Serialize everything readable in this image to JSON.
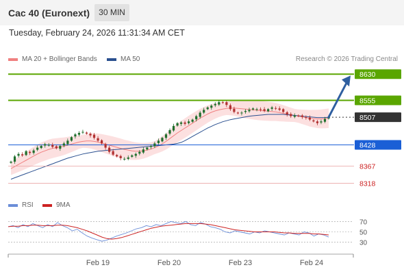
{
  "header": {
    "title": "Cac 40 (Euronext)",
    "timeframe": "30 MIN",
    "datetime": "Tuesday, February 24, 2026 11:31:34 AM CET"
  },
  "legend": {
    "ma20_label": "MA 20 + Bollinger Bands",
    "ma50_label": "MA 50",
    "copyright": "Research © 2026 Trading Central"
  },
  "colors": {
    "resistance": "#5aa600",
    "support": "#1a5fd6",
    "current": "#333333",
    "target_red": "#cc2222",
    "ma20": "#f08080",
    "ma50": "#2a4f8f",
    "bollinger_fill": "#fbd6d6",
    "candle_up": "#1f6e2c",
    "candle_down": "#b03030",
    "arrow": "#2f5fa0",
    "rsi": "#6b8ed8",
    "rsi_ma": "#cc2222"
  },
  "chart_data": [
    {
      "type": "candlestick",
      "title": "Cac 40 (Euronext)",
      "ylim": [
        8290,
        8650
      ],
      "x_tick_labels": [
        "Feb 19",
        "Feb 20",
        "Feb 23",
        "Feb 24"
      ],
      "levels": [
        {
          "value": 8630,
          "label": "8630",
          "kind": "resistance"
        },
        {
          "value": 8555,
          "label": "8555",
          "kind": "resistance"
        },
        {
          "value": 8507,
          "label": "8507",
          "kind": "current"
        },
        {
          "value": 8428,
          "label": "8428",
          "kind": "support"
        },
        {
          "value": 8367,
          "label": "8367",
          "kind": "target"
        },
        {
          "value": 8318,
          "label": "8318",
          "kind": "target"
        }
      ],
      "series": [
        {
          "name": "Close",
          "values": [
            8380,
            8395,
            8402,
            8398,
            8410,
            8405,
            8412,
            8420,
            8425,
            8430,
            8428,
            8422,
            8418,
            8425,
            8432,
            8440,
            8450,
            8458,
            8462,
            8465,
            8460,
            8455,
            8448,
            8440,
            8432,
            8420,
            8408,
            8400,
            8395,
            8390,
            8388,
            8392,
            8398,
            8402,
            8408,
            8415,
            8420,
            8425,
            8432,
            8440,
            8448,
            8458,
            8470,
            8482,
            8490,
            8492,
            8488,
            8495,
            8500,
            8510,
            8520,
            8528,
            8535,
            8540,
            8545,
            8550,
            8548,
            8542,
            8530,
            8522,
            8518,
            8520,
            8525,
            8528,
            8532,
            8530,
            8528,
            8525,
            8530,
            8535,
            8532,
            8528,
            8522,
            8515,
            8510,
            8512,
            8510,
            8508,
            8505,
            8500,
            8495,
            8490,
            8495,
            8502,
            8507
          ]
        },
        {
          "name": "MA 20",
          "values": [
            8360,
            8366,
            8372,
            8378,
            8384,
            8390,
            8396,
            8402,
            8407,
            8411,
            8415,
            8418,
            8420,
            8422,
            8424,
            8427,
            8430,
            8433,
            8436,
            8438,
            8439,
            8439,
            8438,
            8436,
            8433,
            8430,
            8427,
            8424,
            8421,
            8418,
            8415,
            8413,
            8411,
            8410,
            8410,
            8411,
            8413,
            8416,
            8420,
            8425,
            8431,
            8438,
            8446,
            8454,
            8462,
            8469,
            8476,
            8483,
            8490,
            8497,
            8504,
            8510,
            8516,
            8521,
            8525,
            8528,
            8530,
            8532,
            8533,
            8533,
            8532,
            8531,
            8530,
            8529,
            8528,
            8527,
            8526,
            8525,
            8524,
            8523,
            8522,
            8520,
            8518,
            8516,
            8514,
            8512,
            8510,
            8508,
            8506,
            8504,
            8503,
            8502,
            8502,
            8503,
            8504
          ]
        },
        {
          "name": "MA 50",
          "values": [
            8330,
            8334,
            8338,
            8342,
            8346,
            8350,
            8354,
            8358,
            8362,
            8366,
            8370,
            8374,
            8378,
            8382,
            8386,
            8390,
            8393,
            8396,
            8399,
            8402,
            8404,
            8406,
            8408,
            8410,
            8411,
            8412,
            8413,
            8414,
            8415,
            8416,
            8417,
            8418,
            8419,
            8420,
            8421,
            8422,
            8423,
            8424,
            8425,
            8426,
            8427,
            8428,
            8429,
            8430,
            8432,
            8435,
            8440,
            8446,
            8452,
            8458,
            8464,
            8470,
            8476,
            8481,
            8486,
            8490,
            8494,
            8497,
            8500,
            8502,
            8504,
            8506,
            8508,
            8510,
            8511,
            8512,
            8513,
            8514,
            8515,
            8515,
            8515,
            8515,
            8515,
            8514,
            8513,
            8512,
            8511,
            8510,
            8509,
            8508,
            8507,
            8506,
            8506,
            8506,
            8507
          ]
        }
      ]
    },
    {
      "type": "line",
      "title": "RSI",
      "ylim": [
        15,
        85
      ],
      "y_tick_labels": [
        "70",
        "50",
        "30"
      ],
      "series": [
        {
          "name": "RSI",
          "values": [
            60,
            62,
            58,
            64,
            60,
            66,
            62,
            58,
            64,
            60,
            68,
            62,
            58,
            52,
            55,
            48,
            42,
            38,
            35,
            32,
            34,
            38,
            42,
            45,
            48,
            52,
            56,
            58,
            62,
            60,
            64,
            62,
            66,
            70,
            68,
            66,
            70,
            64,
            62,
            68,
            65,
            60,
            58,
            55,
            50,
            48,
            52,
            50,
            48,
            46,
            50,
            48,
            52,
            50,
            48,
            46,
            44,
            48,
            46,
            44,
            50,
            48,
            42,
            46,
            44,
            40
          ]
        },
        {
          "name": "9MA",
          "values": [
            60,
            61,
            61,
            62,
            62,
            63,
            63,
            62,
            62,
            62,
            63,
            63,
            62,
            60,
            58,
            55,
            52,
            48,
            44,
            40,
            37,
            36,
            37,
            39,
            42,
            45,
            48,
            51,
            54,
            57,
            59,
            61,
            62,
            63,
            64,
            65,
            66,
            66,
            66,
            66,
            65,
            64,
            62,
            60,
            58,
            56,
            54,
            53,
            52,
            51,
            50,
            50,
            50,
            50,
            50,
            49,
            48,
            48,
            47,
            47,
            47,
            47,
            46,
            46,
            45,
            44
          ]
        }
      ]
    }
  ],
  "rsi_legend": {
    "rsi_label": "RSI",
    "ma_label": "9MA"
  }
}
